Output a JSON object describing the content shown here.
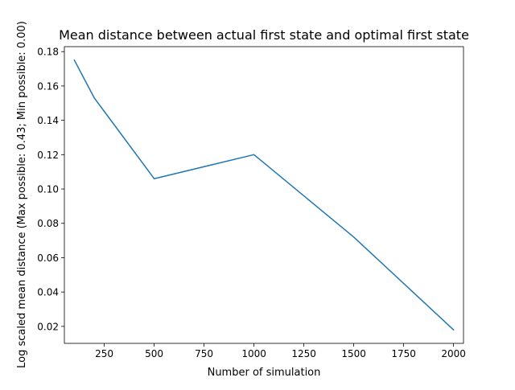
{
  "chart_data": {
    "type": "line",
    "title": "Mean distance between actual first state and optimal first state",
    "xlabel": "Number of simulation",
    "ylabel": "Log scaled mean distance (Max possible: 0.43; Min possible: 0.00)",
    "xlim": [
      50,
      2050
    ],
    "ylim": [
      0.0101,
      0.1829
    ],
    "x_ticks": [
      250,
      500,
      750,
      1000,
      1250,
      1500,
      1750,
      2000
    ],
    "y_ticks": [
      0.02,
      0.04,
      0.06,
      0.08,
      0.1,
      0.12,
      0.14,
      0.16,
      0.18
    ],
    "grid": false,
    "series": [
      {
        "color": "#1f77b4",
        "x": [
          100,
          200,
          500,
          1000,
          1500,
          2000
        ],
        "y": [
          0.175,
          0.153,
          0.106,
          0.12,
          0.072,
          0.018
        ]
      }
    ]
  }
}
